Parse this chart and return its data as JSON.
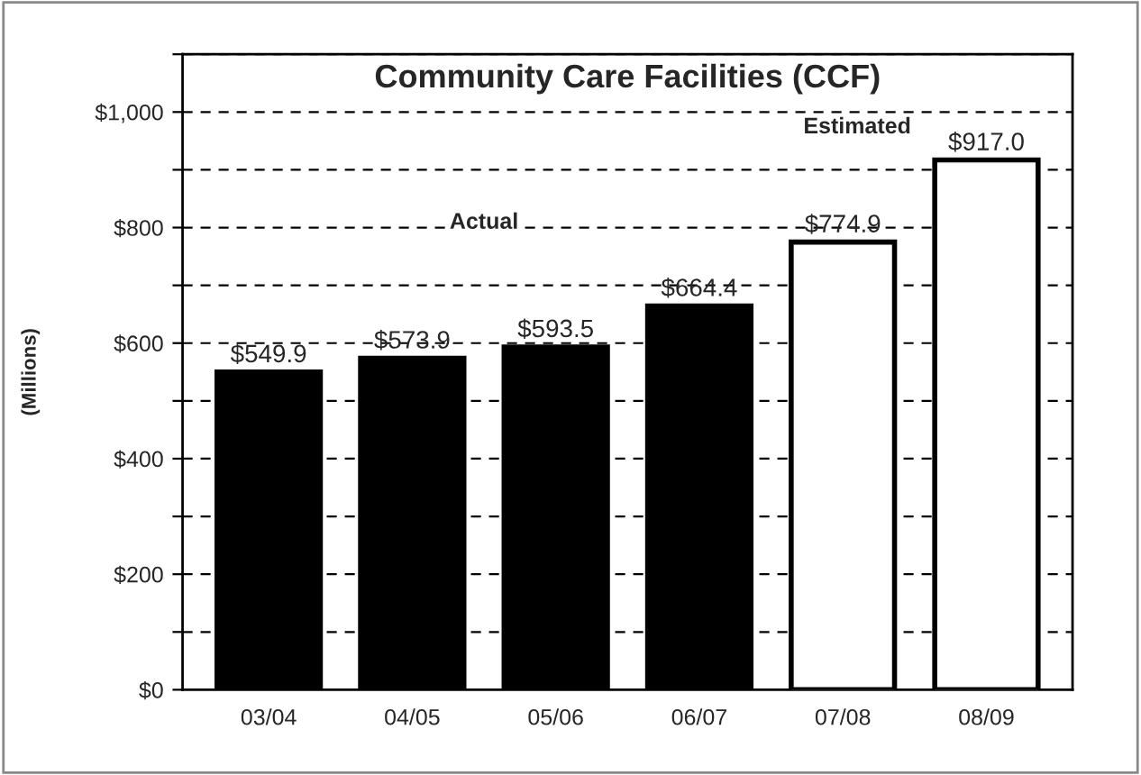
{
  "chart_data": {
    "type": "bar",
    "title": "Community Care Facilities (CCF)",
    "ylabel": "(Millions)",
    "categories": [
      "03/04",
      "04/05",
      "05/06",
      "06/07",
      "07/08",
      "08/09"
    ],
    "values": [
      549.9,
      573.9,
      593.5,
      664.4,
      774.9,
      917.0
    ],
    "colors": [
      "#000000",
      "#000000",
      "#000000",
      "#000000",
      "#ffffff",
      "#ffffff"
    ],
    "value_labels": [
      "$549.9",
      "$573.9",
      "$593.5",
      "$664.4",
      "$774.9",
      "$917.0"
    ],
    "annotations": [
      "Actual",
      "Estimated"
    ],
    "ylim": [
      0,
      1100
    ],
    "yticks": [
      {
        "value": 0,
        "label": "$0"
      },
      {
        "value": 100,
        "label": null
      },
      {
        "value": 200,
        "label": "$200"
      },
      {
        "value": 300,
        "label": null
      },
      {
        "value": 400,
        "label": "$400"
      },
      {
        "value": 500,
        "label": null
      },
      {
        "value": 600,
        "label": "$600"
      },
      {
        "value": 700,
        "label": null
      },
      {
        "value": 800,
        "label": "$800"
      },
      {
        "value": 900,
        "label": null
      },
      {
        "value": 1000,
        "label": "$1,000"
      },
      {
        "value": 1100,
        "label": null
      }
    ],
    "grid": "y",
    "legend": false
  }
}
